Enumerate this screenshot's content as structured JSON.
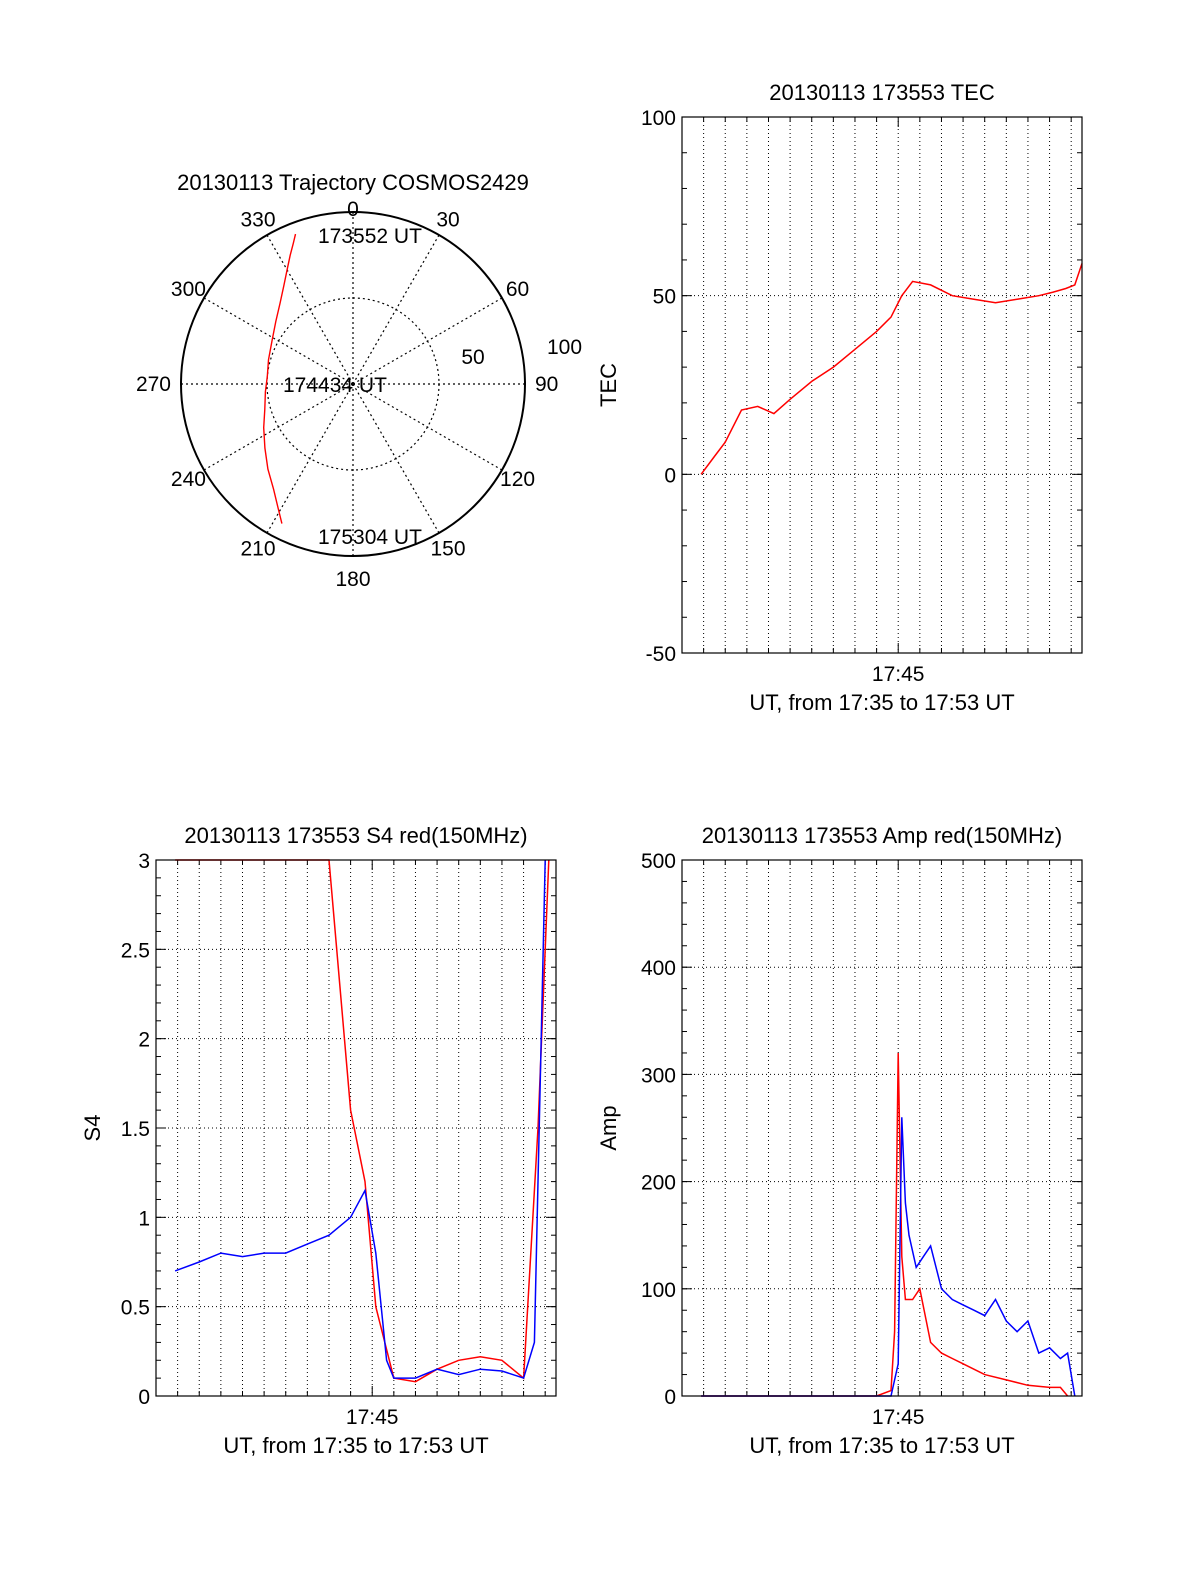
{
  "chart_data": [
    {
      "type": "polar",
      "title": "20130113 Trajectory COSMOS2429",
      "azimuth_labels": [
        "0",
        "30",
        "60",
        "90",
        "120",
        "150",
        "180",
        "210",
        "240",
        "270",
        "300",
        "330"
      ],
      "elevation_labels": [
        "100",
        "50"
      ],
      "point_labels": [
        "173552 UT",
        "174434 UT",
        "175304 UT"
      ],
      "trajectory_color": "#ff0000",
      "trajectory": {
        "az": [
          339,
          337,
          334,
          330,
          325,
          318,
          309,
          298,
          286,
          275,
          265,
          254,
          244,
          234,
          225,
          217,
          211,
          207
        ],
        "el": [
          6,
          10,
          15,
          21,
          27,
          33,
          38,
          42,
          44,
          45,
          44,
          42,
          38,
          33,
          27,
          21,
          14,
          8
        ]
      }
    },
    {
      "type": "line",
      "title": "20130113 173553 TEC",
      "ylabel": "TEC",
      "xlabel": "UT, from 17:35 to 17:53 UT",
      "xtick_label": "17:45",
      "yticks": [
        "-50",
        "0",
        "50",
        "100"
      ],
      "ylim": [
        -50,
        100
      ],
      "xlim": [
        "17:35:00",
        "17:53:30"
      ],
      "grid": "dotted",
      "series": [
        {
          "color": "#ff0000",
          "x": [
            "17:35:53",
            "17:36:30",
            "17:37:00",
            "17:37:45",
            "17:38:30",
            "17:39:15",
            "17:40:00",
            "17:41:00",
            "17:42:00",
            "17:43:00",
            "17:44:00",
            "17:44:40",
            "17:45:10",
            "17:45:40",
            "17:46:30",
            "17:47:30",
            "17:48:30",
            "17:49:30",
            "17:50:30",
            "17:51:30",
            "17:52:10",
            "17:52:45",
            "17:53:10",
            "17:53:30"
          ],
          "y": [
            0,
            5,
            9,
            18,
            19,
            17,
            21,
            26,
            30,
            35,
            40,
            44,
            50,
            54,
            53,
            50,
            49,
            48,
            49,
            50,
            51,
            52,
            53,
            59
          ]
        }
      ]
    },
    {
      "type": "line",
      "title": "20130113 173553 S4 red(150MHz)",
      "ylabel": "S4",
      "xlabel": "UT, from 17:35 to 17:53 UT",
      "xtick_label": "17:45",
      "yticks": [
        "0",
        "0.5",
        "1",
        "1.5",
        "2",
        "2.5",
        "3"
      ],
      "ylim": [
        0,
        3
      ],
      "xlim": [
        "17:35:00",
        "17:53:30"
      ],
      "grid": "dotted",
      "series": [
        {
          "color": "#ff0000",
          "x": [
            "17:35:53",
            "17:38:00",
            "17:40:00",
            "17:42:00",
            "17:43:00",
            "17:44:00",
            "17:44:40",
            "17:45:10",
            "17:46:00",
            "17:47:00",
            "17:48:00",
            "17:49:00",
            "17:50:00",
            "17:51:00",
            "17:52:00",
            "17:52:40",
            "17:53:10"
          ],
          "y": [
            3.0,
            3.0,
            3.0,
            3.0,
            3.0,
            1.6,
            1.2,
            0.5,
            0.1,
            0.08,
            0.15,
            0.2,
            0.22,
            0.2,
            0.1,
            1.5,
            3.0
          ]
        },
        {
          "color": "#0000ff",
          "x": [
            "17:35:53",
            "17:37:00",
            "17:38:00",
            "17:39:00",
            "17:40:00",
            "17:41:00",
            "17:42:00",
            "17:43:00",
            "17:44:00",
            "17:44:40",
            "17:45:10",
            "17:45:40",
            "17:46:00",
            "17:47:00",
            "17:48:00",
            "17:49:00",
            "17:50:00",
            "17:51:00",
            "17:52:00",
            "17:52:30",
            "17:53:00"
          ],
          "y": [
            0.7,
            0.75,
            0.8,
            0.78,
            0.8,
            0.8,
            0.85,
            0.9,
            1.0,
            1.15,
            0.8,
            0.2,
            0.1,
            0.1,
            0.15,
            0.12,
            0.15,
            0.14,
            0.1,
            0.3,
            3.0
          ]
        }
      ]
    },
    {
      "type": "line",
      "title": "20130113 173553 Amp red(150MHz)",
      "ylabel": "Amp",
      "xlabel": "UT, from 17:35 to 17:53 UT",
      "xtick_label": "17:45",
      "yticks": [
        "0",
        "100",
        "200",
        "300",
        "400",
        "500"
      ],
      "ylim": [
        0,
        500
      ],
      "xlim": [
        "17:35:00",
        "17:53:30"
      ],
      "grid": "dotted",
      "series": [
        {
          "color": "#ff0000",
          "x": [
            "17:35:53",
            "17:44:00",
            "17:44:40",
            "17:44:50",
            "17:45:00",
            "17:45:10",
            "17:45:20",
            "17:45:40",
            "17:46:00",
            "17:46:30",
            "17:47:00",
            "17:47:30",
            "17:48:00",
            "17:49:00",
            "17:50:00",
            "17:51:00",
            "17:52:00",
            "17:52:30",
            "17:52:50"
          ],
          "y": [
            0,
            0,
            5,
            60,
            320,
            130,
            90,
            90,
            100,
            50,
            40,
            35,
            30,
            20,
            15,
            10,
            8,
            8,
            0
          ]
        },
        {
          "color": "#0000ff",
          "x": [
            "17:35:53",
            "17:44:40",
            "17:45:00",
            "17:45:10",
            "17:45:20",
            "17:45:30",
            "17:45:50",
            "17:46:10",
            "17:46:30",
            "17:47:00",
            "17:47:30",
            "17:48:00",
            "17:48:30",
            "17:49:00",
            "17:49:30",
            "17:50:00",
            "17:50:30",
            "17:51:00",
            "17:51:30",
            "17:52:00",
            "17:52:30",
            "17:52:50",
            "17:53:10"
          ],
          "y": [
            0,
            0,
            30,
            260,
            180,
            150,
            120,
            130,
            140,
            100,
            90,
            85,
            80,
            75,
            90,
            70,
            60,
            70,
            40,
            45,
            35,
            40,
            0
          ]
        }
      ]
    }
  ]
}
